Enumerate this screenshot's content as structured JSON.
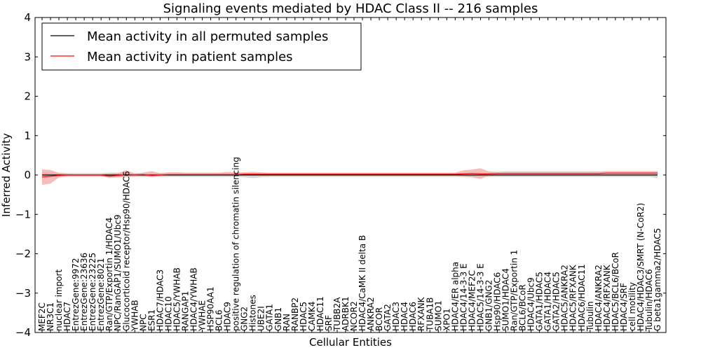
{
  "chart_data": {
    "type": "line",
    "title": "Signaling events mediated by HDAC Class II -- 216 samples",
    "xlabel": "Cellular Entities",
    "ylabel": "Inferred Activity",
    "ylim": [
      -4,
      4
    ],
    "yticks": [
      4,
      3,
      2,
      1,
      0,
      -1,
      -2,
      -3,
      -4
    ],
    "ytick_labels": [
      "4",
      "3",
      "2",
      "1",
      "0",
      "−1",
      "−2",
      "−3",
      "−4"
    ],
    "legend": {
      "position": "top-left",
      "entries": [
        {
          "label": "Mean activity in all permuted samples",
          "color": "#000000"
        },
        {
          "label": "Mean activity in patient samples",
          "color": "#ff0000"
        }
      ]
    },
    "categories": [
      "MEF2C",
      "NR3C1",
      "nuclear import",
      "HDAC7",
      "EntrezGene:9972",
      "EntrezGene:23636",
      "EntrezGene:23225",
      "EntrezGene:8021",
      "Ran/GTP/Exportin 1/HDAC4",
      "NPC/RanGAP1/SUMO1/Ubc9",
      "Glucocorticoid receptor/Hsp90/HDAC6",
      "YWHAB",
      "NPC",
      "ESR1",
      "HDAC7/HDAC3",
      "HDAC10",
      "HDAC5/YWHAB",
      "RANGAP1",
      "HDAC4/YWHAB",
      "YWHAE",
      "HSP90AA1",
      "BCL6",
      "HDAC9",
      "positive regulation of chromatin silencing",
      "GNG2",
      "Histones",
      "UBE2I",
      "GATA1",
      "GNB1",
      "RAN",
      "RANBP2",
      "HDAC5",
      "CAMK4",
      "HDAC11",
      "SRF",
      "TUBB2A",
      "ADRBK1",
      "NCOR2",
      "HDAC4/CaMK II delta B",
      "ANKRA2",
      "BCOR",
      "GATA2",
      "HDAC3",
      "HDAC4",
      "HDAC6",
      "RFXANK",
      "TUBA1B",
      "SUMO1",
      "XPO1",
      "HDAC4/ER alpha",
      "HDAC4/14-3-3 E",
      "HDAC4/MEF2C",
      "HDAC5/14-3-3 E",
      "GNB1/GNG2",
      "Hsp90/HDAC6",
      "SUMO1/HDAC4",
      "Ran/GTP/Exportin 1",
      "BCL6/BCoR",
      "HDAC4/Ubc9",
      "GATA1/HDAC5",
      "GATA1/HDAC4",
      "GATA2/HDAC5",
      "HDAC5/ANKRA2",
      "HDAC5/RFXANK",
      "HDAC6/HDAC11",
      "Tubulin",
      "HDAC4/ANKRA2",
      "HDAC4/RFXANK",
      "HDAC5/BCL6/BCoR",
      "HDAC4/SRF",
      "cell motility",
      "HDAC4/HDAC3/SMRT (N-CoR2)",
      "Tubulin/HDAC6",
      "G beta1gamma2/HDAC5"
    ],
    "series": [
      {
        "name": "Mean activity in all permuted samples",
        "color": "#000000",
        "band_color": "#c8c8c8",
        "values": [
          0,
          0,
          0,
          0,
          0,
          0,
          0,
          0,
          0,
          0,
          0,
          0,
          0,
          0,
          0,
          0,
          0,
          0,
          0,
          0,
          0,
          0,
          0,
          0,
          0,
          0,
          0,
          0,
          0,
          0,
          0,
          0,
          0,
          0,
          0,
          0,
          0,
          0,
          0,
          0,
          0,
          0,
          0,
          0,
          0,
          0,
          0,
          0,
          0,
          0,
          0,
          0,
          0,
          0,
          0,
          0,
          0,
          0,
          0,
          0,
          0,
          0,
          0,
          0,
          0,
          0,
          0,
          0,
          0,
          0,
          0,
          0,
          0,
          0
        ],
        "lower": [
          -0.07,
          -0.07,
          -0.06,
          -0.05,
          -0.05,
          -0.05,
          -0.05,
          -0.05,
          -0.06,
          -0.06,
          -0.06,
          -0.05,
          -0.05,
          -0.05,
          -0.05,
          -0.05,
          -0.05,
          -0.05,
          -0.05,
          -0.05,
          -0.05,
          -0.05,
          -0.05,
          -0.05,
          -0.06,
          -0.08,
          -0.06,
          -0.05,
          -0.05,
          -0.05,
          -0.05,
          -0.05,
          -0.05,
          -0.05,
          -0.05,
          -0.05,
          -0.05,
          -0.05,
          -0.05,
          -0.05,
          -0.05,
          -0.05,
          -0.05,
          -0.05,
          -0.05,
          -0.05,
          -0.05,
          -0.05,
          -0.05,
          -0.05,
          -0.05,
          -0.05,
          -0.05,
          -0.05,
          -0.05,
          -0.05,
          -0.05,
          -0.05,
          -0.05,
          -0.05,
          -0.05,
          -0.05,
          -0.05,
          -0.05,
          -0.05,
          -0.05,
          -0.05,
          -0.05,
          -0.05,
          -0.05,
          -0.05,
          -0.05,
          -0.05,
          -0.08
        ],
        "upper": [
          0.07,
          0.07,
          0.06,
          0.05,
          0.05,
          0.05,
          0.05,
          0.05,
          0.06,
          0.06,
          0.06,
          0.05,
          0.05,
          0.05,
          0.05,
          0.05,
          0.05,
          0.05,
          0.05,
          0.05,
          0.05,
          0.05,
          0.05,
          0.05,
          0.05,
          0.05,
          0.05,
          0.05,
          0.05,
          0.05,
          0.05,
          0.05,
          0.05,
          0.05,
          0.05,
          0.05,
          0.05,
          0.05,
          0.05,
          0.05,
          0.05,
          0.05,
          0.05,
          0.05,
          0.05,
          0.05,
          0.05,
          0.05,
          0.05,
          0.05,
          0.05,
          0.05,
          0.05,
          0.05,
          0.05,
          0.05,
          0.05,
          0.05,
          0.05,
          0.05,
          0.05,
          0.05,
          0.05,
          0.05,
          0.05,
          0.05,
          0.05,
          0.05,
          0.05,
          0.05,
          0.05,
          0.05,
          0.05,
          0.06
        ]
      },
      {
        "name": "Mean activity in patient samples",
        "color": "#ff0000",
        "band_color": "#f5a0a0",
        "values": [
          -0.05,
          -0.03,
          -0.01,
          0,
          0,
          0,
          0,
          0,
          -0.03,
          -0.01,
          0.01,
          0,
          0.01,
          -0.01,
          0,
          0.01,
          0.01,
          0.01,
          0.01,
          0.01,
          0.01,
          0.01,
          0.01,
          0.01,
          0.02,
          0.02,
          0.02,
          0.02,
          0.02,
          0.02,
          0.02,
          0.02,
          0.02,
          0.02,
          0.02,
          0.02,
          0.02,
          0.02,
          0.02,
          0.02,
          0.02,
          0.02,
          0.02,
          0.02,
          0.02,
          0.02,
          0.02,
          0.02,
          0.02,
          0.02,
          0.03,
          0.04,
          0.03,
          0.03,
          0.04,
          0.04,
          0.04,
          0.04,
          0.04,
          0.04,
          0.04,
          0.04,
          0.04,
          0.04,
          0.04,
          0.04,
          0.04,
          0.05,
          0.05,
          0.05,
          0.05,
          0.05,
          0.05,
          0.05
        ],
        "lower": [
          -0.25,
          -0.22,
          -0.06,
          -0.02,
          -0.02,
          -0.02,
          -0.02,
          -0.02,
          -0.08,
          -0.06,
          -0.04,
          -0.02,
          -0.03,
          -0.05,
          -0.02,
          -0.01,
          -0.02,
          -0.01,
          -0.02,
          -0.02,
          -0.02,
          -0.02,
          -0.02,
          -0.01,
          -0.01,
          -0.01,
          -0.01,
          -0.01,
          -0.01,
          -0.01,
          -0.01,
          -0.01,
          -0.01,
          -0.01,
          -0.01,
          -0.01,
          -0.01,
          -0.01,
          -0.01,
          -0.01,
          -0.01,
          -0.01,
          -0.01,
          -0.01,
          -0.01,
          -0.01,
          -0.01,
          -0.01,
          -0.01,
          -0.01,
          -0.04,
          -0.06,
          -0.1,
          -0.02,
          -0.01,
          0,
          0,
          0,
          0,
          0,
          0,
          0,
          0,
          0,
          0,
          0,
          0,
          0,
          0,
          0,
          0,
          0,
          0,
          0.01
        ],
        "upper": [
          0.14,
          0.13,
          0.05,
          0.03,
          0.02,
          0.02,
          0.02,
          0.02,
          0.04,
          0.05,
          0.12,
          0.04,
          0.06,
          0.1,
          0.05,
          0.07,
          0.07,
          0.06,
          0.06,
          0.06,
          0.06,
          0.06,
          0.08,
          0.07,
          0.07,
          0.08,
          0.07,
          0.06,
          0.06,
          0.06,
          0.06,
          0.06,
          0.06,
          0.06,
          0.06,
          0.06,
          0.06,
          0.06,
          0.06,
          0.06,
          0.06,
          0.06,
          0.06,
          0.06,
          0.06,
          0.06,
          0.06,
          0.06,
          0.06,
          0.06,
          0.12,
          0.14,
          0.17,
          0.09,
          0.08,
          0.09,
          0.09,
          0.09,
          0.09,
          0.09,
          0.09,
          0.09,
          0.09,
          0.09,
          0.09,
          0.09,
          0.09,
          0.1,
          0.1,
          0.1,
          0.1,
          0.1,
          0.1,
          0.1
        ]
      }
    ]
  }
}
